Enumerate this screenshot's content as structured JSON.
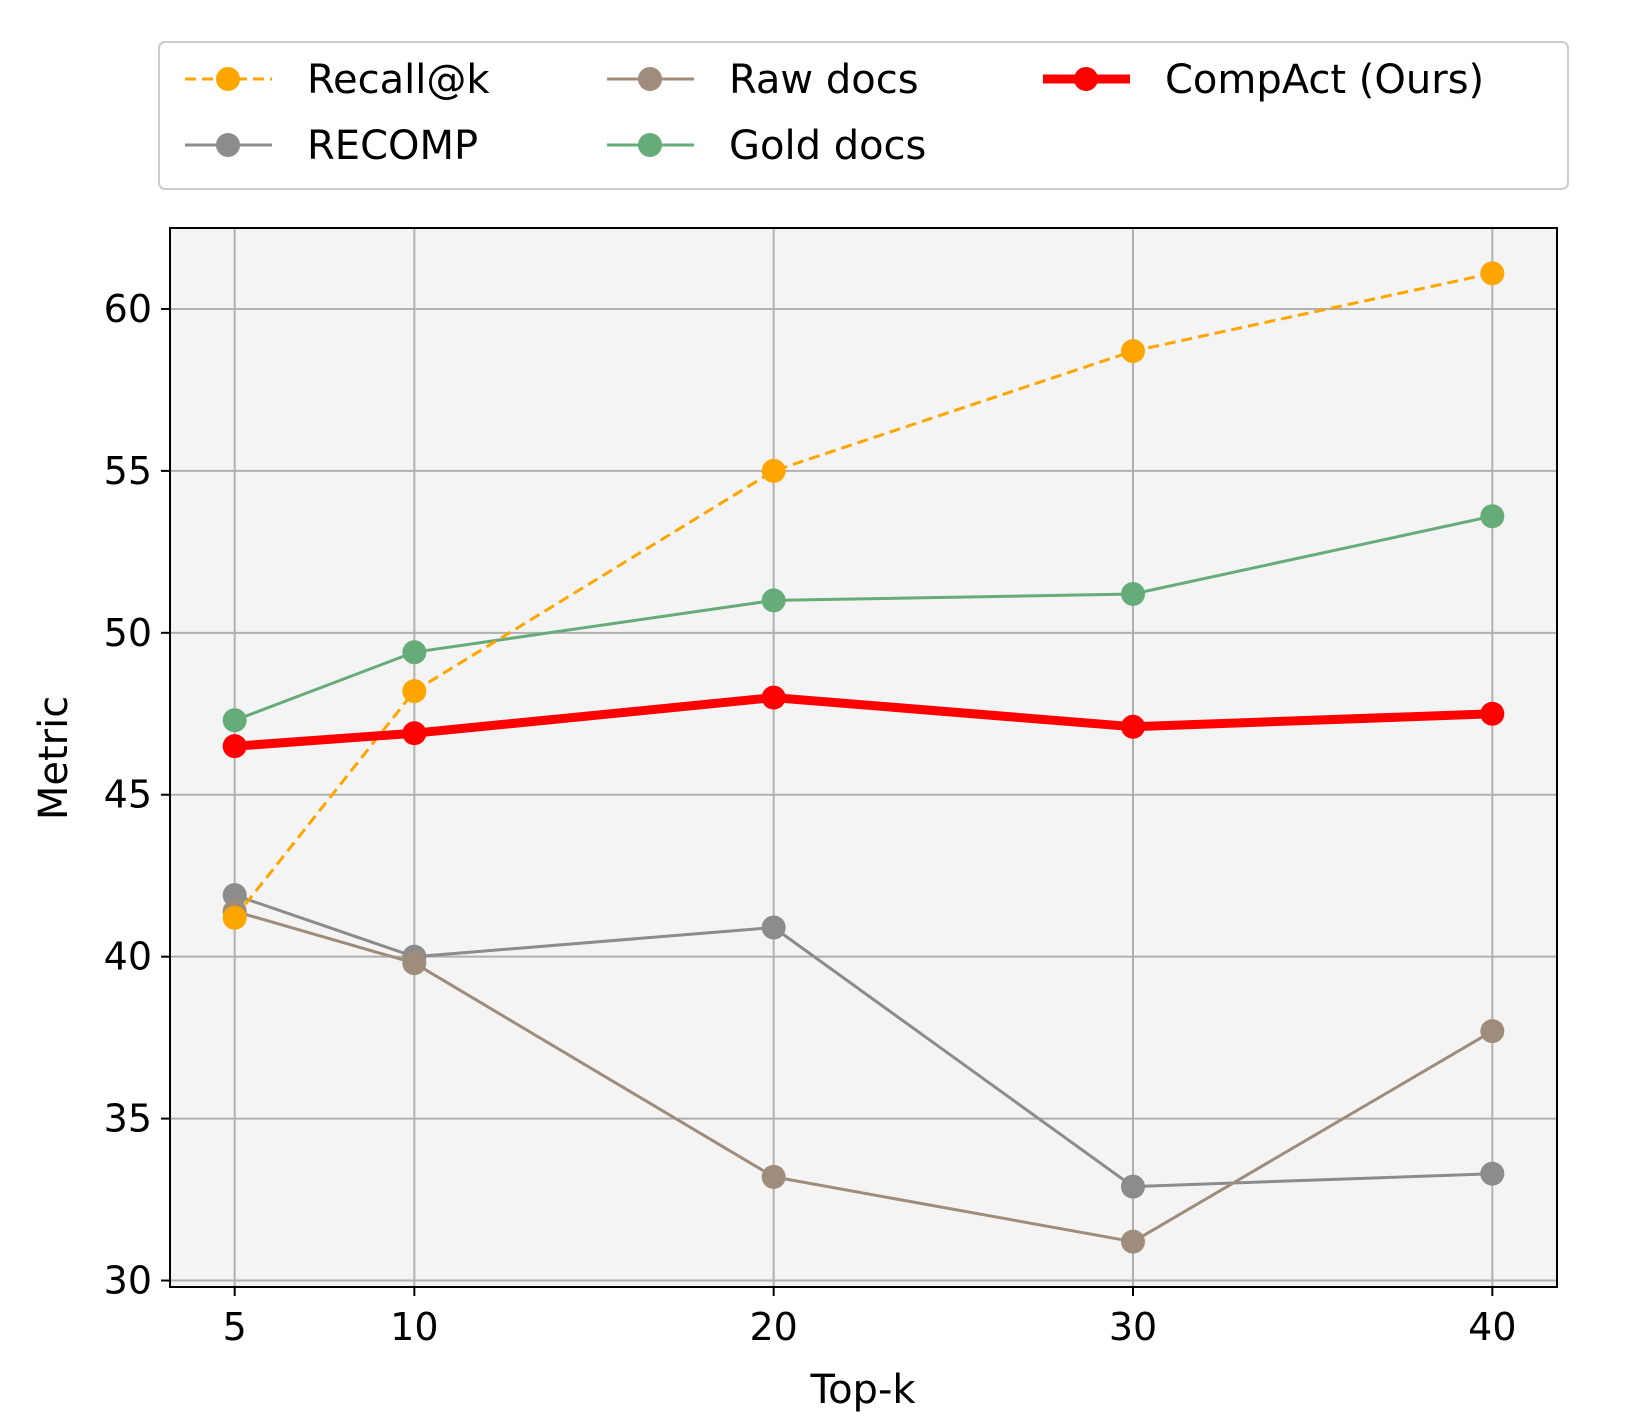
{
  "chart_data": {
    "type": "line",
    "title": "",
    "xlabel": "Top-k",
    "ylabel": "Metric",
    "x": [
      5,
      10,
      20,
      30,
      40
    ],
    "x_tick_labels": [
      "5",
      "10",
      "20",
      "30",
      "40"
    ],
    "xlim": [
      3.2,
      41.8
    ],
    "ylim": [
      29.8,
      62.5
    ],
    "y_ticks": [
      30,
      35,
      40,
      45,
      50,
      55,
      60
    ],
    "y_tick_labels": [
      "30",
      "35",
      "40",
      "45",
      "50",
      "55",
      "60"
    ],
    "grid": true,
    "legend_position": "top, above plot",
    "series": [
      {
        "name": "Recall@k",
        "color": "#ffa500",
        "line_style": "dashed",
        "line_width": 3,
        "values": [
          41.2,
          48.2,
          55.0,
          58.7,
          61.1
        ]
      },
      {
        "name": "RECOMP",
        "color": "#8c8c8c",
        "line_style": "solid",
        "line_width": 3,
        "values": [
          41.9,
          40.0,
          40.9,
          32.9,
          33.3
        ]
      },
      {
        "name": "Raw docs",
        "color": "#a08c7a",
        "line_style": "solid",
        "line_width": 3,
        "values": [
          41.4,
          39.8,
          33.2,
          31.2,
          37.7
        ]
      },
      {
        "name": "Gold docs",
        "color": "#66ac78",
        "line_style": "solid",
        "line_width": 3,
        "values": [
          47.3,
          49.4,
          51.0,
          51.2,
          53.6
        ]
      },
      {
        "name": "CompAct (Ours)",
        "color": "#ff0000",
        "line_style": "solid",
        "line_width": 9,
        "values": [
          46.5,
          46.9,
          48.0,
          47.1,
          47.5
        ]
      }
    ]
  }
}
